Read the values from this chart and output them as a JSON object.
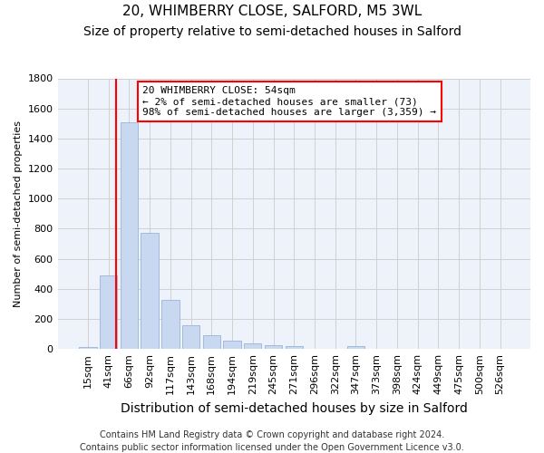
{
  "title": "20, WHIMBERRY CLOSE, SALFORD, M5 3WL",
  "subtitle": "Size of property relative to semi-detached houses in Salford",
  "xlabel": "Distribution of semi-detached houses by size in Salford",
  "ylabel": "Number of semi-detached properties",
  "categories": [
    "15sqm",
    "41sqm",
    "66sqm",
    "92sqm",
    "117sqm",
    "143sqm",
    "168sqm",
    "194sqm",
    "219sqm",
    "245sqm",
    "271sqm",
    "296sqm",
    "322sqm",
    "347sqm",
    "373sqm",
    "398sqm",
    "424sqm",
    "449sqm",
    "475sqm",
    "500sqm",
    "526sqm"
  ],
  "values": [
    15,
    490,
    1510,
    775,
    325,
    160,
    90,
    55,
    35,
    25,
    20,
    0,
    0,
    20,
    0,
    0,
    0,
    0,
    0,
    0,
    0
  ],
  "bar_color": "#c8d8f0",
  "bar_edgecolor": "#9ab4d8",
  "bar_width": 0.85,
  "ylim": [
    0,
    1800
  ],
  "yticks": [
    0,
    200,
    400,
    600,
    800,
    1000,
    1200,
    1400,
    1600,
    1800
  ],
  "red_line_x": 1.38,
  "annotation_line1": "20 WHIMBERRY CLOSE: 54sqm",
  "annotation_line2": "← 2% of semi-detached houses are smaller (73)",
  "annotation_line3": "98% of semi-detached houses are larger (3,359) →",
  "footnote": "Contains HM Land Registry data © Crown copyright and database right 2024.\nContains public sector information licensed under the Open Government Licence v3.0.",
  "background_color": "#eef2fb",
  "grid_color": "#d0d0d0",
  "title_fontsize": 11,
  "subtitle_fontsize": 10,
  "xlabel_fontsize": 10,
  "ylabel_fontsize": 8,
  "tick_fontsize": 8,
  "annotation_fontsize": 8,
  "footnote_fontsize": 7
}
